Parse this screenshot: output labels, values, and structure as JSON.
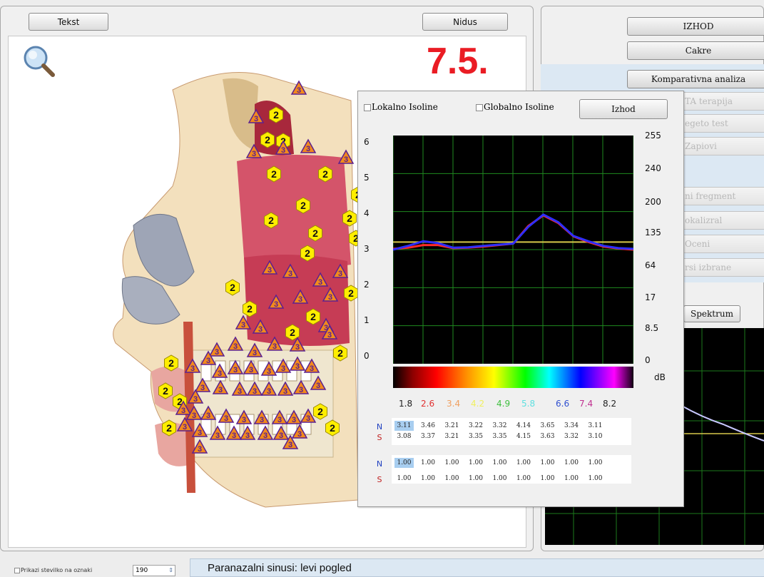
{
  "left_panel": {
    "text_button": "Tekst",
    "nidus_button": "Nidus",
    "version_label": "7.5."
  },
  "right_panel": {
    "buttons": [
      {
        "label": "IZHOD",
        "enabled": true
      },
      {
        "label": "Cakre",
        "enabled": true
      },
      {
        "label": "Komparativna analiza",
        "enabled": true
      },
      {
        "label": "TA terapija",
        "enabled": false
      },
      {
        "label": "egeto test",
        "enabled": false
      },
      {
        "label": "Zapiovi",
        "enabled": false
      },
      {
        "label": "ni fregment",
        "enabled": false
      },
      {
        "label": "okalizral",
        "enabled": false
      },
      {
        "label": "Oceni",
        "enabled": false
      },
      {
        "label": "rsi izbrane",
        "enabled": false
      }
    ],
    "spectrum_button": "Spektrum"
  },
  "popup": {
    "local_isolines_label": "Lokalno Isoline",
    "global_isolines_label": "Globalno Isoline",
    "exit_button": "Izhod",
    "left_axis": [
      "6",
      "5",
      "4",
      "3",
      "2",
      "1",
      "0"
    ],
    "right_axis": [
      "255",
      "240",
      "200",
      "135",
      "64",
      "17",
      "8.5",
      "0"
    ],
    "right_axis_unit": "dB",
    "scale_labels": [
      {
        "text": "1.8",
        "color": "#222222"
      },
      {
        "text": "2.6",
        "color": "#e03030"
      },
      {
        "text": "3.4",
        "color": "#f0a060"
      },
      {
        "text": "4.2",
        "color": "#f0f060"
      },
      {
        "text": "4.9",
        "color": "#40c040"
      },
      {
        "text": "5.8",
        "color": "#60e0e0"
      },
      {
        "text": "6.6",
        "color": "#3050d0"
      },
      {
        "text": "7.4",
        "color": "#c03090"
      },
      {
        "text": "8.2",
        "color": "#222222"
      }
    ],
    "table1": {
      "n_label": "N",
      "s_label": "S",
      "n_values": [
        "3.11",
        "3.46",
        "3.21",
        "3.22",
        "3.32",
        "4.14",
        "3.65",
        "3.34",
        "3.11"
      ],
      "s_values": [
        "3.08",
        "3.37",
        "3.21",
        "3.35",
        "3.35",
        "4.15",
        "3.63",
        "3.32",
        "3.10"
      ]
    },
    "table2": {
      "n_label": "N",
      "s_label": "S",
      "n_values": [
        "1.00",
        "1.00",
        "1.00",
        "1.00",
        "1.00",
        "1.00",
        "1.00",
        "1.00",
        "1.00"
      ],
      "s_values": [
        "1.00",
        "1.00",
        "1.00",
        "1.00",
        "1.00",
        "1.00",
        "1.00",
        "1.00",
        "1.00"
      ]
    }
  },
  "chart_data": {
    "type": "line",
    "ylim": [
      0,
      6
    ],
    "series": [
      {
        "name": "N",
        "color": "#ff2a2a",
        "x": [
          0,
          0.5,
          1,
          1.5,
          2,
          2.5,
          3,
          3.5,
          4,
          4.5,
          5,
          5.5,
          6,
          6.5,
          7,
          7.5,
          8
        ],
        "values": [
          3.02,
          3.05,
          3.12,
          3.12,
          3.04,
          3.05,
          3.08,
          3.12,
          3.16,
          3.62,
          3.9,
          3.7,
          3.35,
          3.2,
          3.08,
          3.03,
          3.0
        ]
      },
      {
        "name": "S",
        "color": "#2e2eff",
        "x": [
          0,
          0.5,
          1,
          1.5,
          2,
          2.5,
          3,
          3.5,
          4,
          4.5,
          5,
          5.5,
          6,
          6.5,
          7,
          7.5,
          8
        ],
        "values": [
          3.0,
          3.1,
          3.22,
          3.17,
          3.05,
          3.06,
          3.1,
          3.13,
          3.16,
          3.6,
          3.92,
          3.72,
          3.36,
          3.22,
          3.1,
          3.04,
          3.02
        ]
      }
    ],
    "reference_line": 3.2,
    "grid": true
  },
  "bottom": {
    "checkbox_label": "Prikazi stevilko na oznaki",
    "spin_value": "190",
    "status_text": "Paranazalni sinusi: levi pogled"
  },
  "hex_label": "2",
  "tri_label": "3"
}
